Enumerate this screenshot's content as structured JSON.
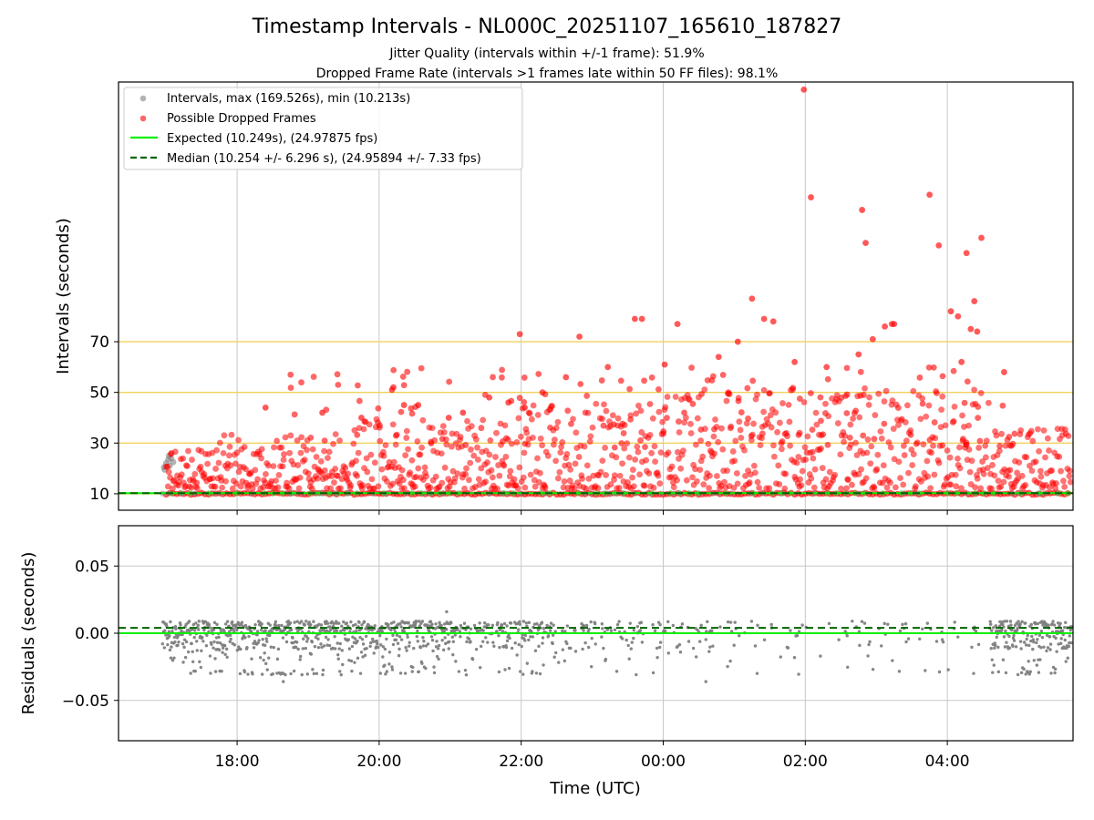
{
  "colors": {
    "expected": "#00ee00",
    "median": "#006400",
    "dropped": "#ff0000",
    "intervals": "#808080",
    "threshold": "#f2d15c",
    "grid": "#c8c8c8"
  },
  "chart_data": [
    {
      "type": "scatter",
      "id": "intervals",
      "title": "Timestamp Intervals - NL000C_20251107_165610_187827",
      "subtitle_1": "Jitter Quality (intervals within +/-1 frame): 51.9%",
      "subtitle_2": "Dropped Frame Rate (intervals >1 frames late within 50 FF files): 98.1%",
      "xlabel": "",
      "ylabel": "Intervals (seconds)",
      "xlim_hours": [
        16.33,
        29.77
      ],
      "ylim": [
        3.5,
        172.5
      ],
      "yticks": [
        10,
        30,
        50,
        70
      ],
      "ytick_labels": [
        "10",
        "30",
        "50",
        "70"
      ],
      "grid": true,
      "threshold_lines": [
        10,
        30,
        50,
        70
      ],
      "expected": 10.249,
      "median": 10.254,
      "legend": {
        "position": "upper-left",
        "entries": [
          {
            "label": "Intervals, max (169.526s), min (10.213s)",
            "kind": "gray-dot"
          },
          {
            "label": "Possible Dropped Frames",
            "kind": "red-dot"
          },
          {
            "label": "Expected (10.249s), (24.97875 fps)",
            "kind": "green-line"
          },
          {
            "label": "Median (10.254 +/- 6.296 s), (24.95894 +/- 7.33 fps)",
            "kind": "green-dash"
          }
        ]
      },
      "gray_cluster": [
        [
          16.97,
          20.5
        ],
        [
          17.0,
          22.0
        ],
        [
          17.03,
          23.5
        ],
        [
          17.05,
          21.0
        ],
        [
          17.07,
          24.0
        ],
        [
          17.1,
          22.5
        ],
        [
          16.98,
          19.5
        ],
        [
          17.04,
          25.0
        ]
      ],
      "dropped_outliers": [
        [
          20.18,
          51
        ],
        [
          20.2,
          52
        ],
        [
          21.98,
          73
        ],
        [
          22.82,
          72
        ],
        [
          23.6,
          79
        ],
        [
          23.7,
          79
        ],
        [
          24.2,
          77
        ],
        [
          25.05,
          70
        ],
        [
          25.25,
          87
        ],
        [
          25.42,
          79
        ],
        [
          25.55,
          78
        ],
        [
          25.98,
          169.5
        ],
        [
          26.08,
          127
        ],
        [
          26.8,
          122
        ],
        [
          26.85,
          109
        ],
        [
          26.95,
          71
        ],
        [
          27.12,
          76
        ],
        [
          27.22,
          77
        ],
        [
          27.25,
          77
        ],
        [
          27.75,
          128
        ],
        [
          27.88,
          108
        ],
        [
          28.05,
          82
        ],
        [
          28.15,
          80
        ],
        [
          28.27,
          105
        ],
        [
          28.33,
          75
        ],
        [
          28.38,
          86
        ],
        [
          28.42,
          74
        ],
        [
          28.48,
          111
        ],
        [
          28.8,
          58
        ],
        [
          28.2,
          62
        ],
        [
          26.75,
          65
        ],
        [
          26.3,
          60
        ],
        [
          25.85,
          62
        ],
        [
          24.78,
          64
        ],
        [
          24.02,
          61
        ],
        [
          23.22,
          60
        ],
        [
          22.63,
          56
        ],
        [
          21.55,
          48
        ],
        [
          21.82,
          46
        ],
        [
          22.3,
          50
        ],
        [
          22.05,
          44
        ],
        [
          19.75,
          40
        ],
        [
          19.2,
          42
        ],
        [
          18.4,
          44
        ],
        [
          20.55,
          45
        ],
        [
          20.35,
          45
        ],
        [
          20.98,
          40
        ],
        [
          21.18,
          42
        ]
      ]
    },
    {
      "type": "scatter",
      "id": "residuals",
      "title": "",
      "xlabel": "Time (UTC)",
      "ylabel": "Residuals (seconds)",
      "xlim_hours": [
        16.33,
        29.77
      ],
      "ylim": [
        -0.08,
        0.08
      ],
      "yticks": [
        0.05,
        0.0,
        -0.05
      ],
      "ytick_labels": [
        "0.05",
        "0.00",
        "−0.05"
      ],
      "xticks_hours": [
        18,
        20,
        22,
        24,
        26,
        28
      ],
      "xtick_labels": [
        "18:00",
        "20:00",
        "22:00",
        "00:00",
        "02:00",
        "04:00"
      ],
      "grid": true,
      "expected_residual": 0.0,
      "median_residual": 0.004
    }
  ]
}
